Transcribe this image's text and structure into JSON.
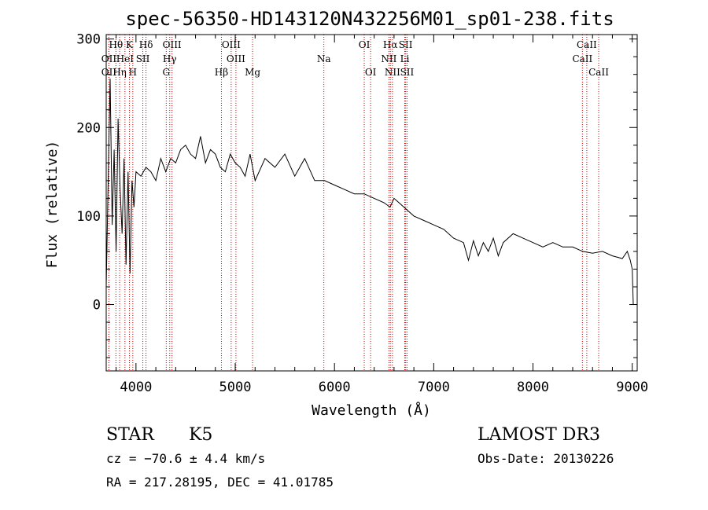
{
  "chart_data": {
    "type": "line",
    "title": "spec-56350-HD143120N432256M01_sp01-238.fits",
    "xlabel": "Wavelength (Å)",
    "ylabel": "Flux (relative)",
    "xlim": [
      3700,
      9050
    ],
    "ylim": [
      -75,
      305
    ],
    "xticks": [
      4000,
      5000,
      6000,
      7000,
      8000,
      9000
    ],
    "yticks": [
      0,
      100,
      200,
      300
    ],
    "series": [
      {
        "name": "flux",
        "x": [
          3700,
          3720,
          3740,
          3760,
          3780,
          3800,
          3820,
          3840,
          3860,
          3880,
          3900,
          3920,
          3940,
          3960,
          3980,
          4000,
          4050,
          4100,
          4150,
          4200,
          4250,
          4300,
          4350,
          4400,
          4450,
          4500,
          4550,
          4600,
          4650,
          4700,
          4750,
          4800,
          4850,
          4900,
          4950,
          5000,
          5050,
          5100,
          5150,
          5200,
          5300,
          5400,
          5500,
          5600,
          5700,
          5800,
          5900,
          6000,
          6100,
          6200,
          6300,
          6400,
          6500,
          6560,
          6600,
          6700,
          6800,
          6900,
          7000,
          7100,
          7200,
          7300,
          7350,
          7400,
          7450,
          7500,
          7550,
          7600,
          7650,
          7700,
          7800,
          7900,
          8000,
          8100,
          8200,
          8300,
          8400,
          8500,
          8600,
          8700,
          8800,
          8900,
          8950,
          8980,
          9000,
          9010
        ],
        "y": [
          20,
          140,
          255,
          90,
          175,
          60,
          210,
          130,
          80,
          165,
          45,
          150,
          35,
          140,
          110,
          150,
          145,
          155,
          150,
          140,
          165,
          150,
          165,
          160,
          175,
          180,
          170,
          165,
          190,
          160,
          175,
          170,
          155,
          150,
          170,
          160,
          155,
          145,
          170,
          140,
          165,
          155,
          170,
          145,
          165,
          140,
          140,
          135,
          130,
          125,
          125,
          120,
          115,
          110,
          120,
          110,
          100,
          95,
          90,
          85,
          75,
          70,
          50,
          72,
          55,
          70,
          60,
          75,
          55,
          70,
          80,
          75,
          70,
          65,
          70,
          65,
          65,
          60,
          58,
          60,
          55,
          52,
          60,
          50,
          40,
          0
        ]
      }
    ],
    "spectral_lines": [
      {
        "label": "Hθ",
        "wave": 3798,
        "row": 0
      },
      {
        "label": "OII",
        "wave": 3727,
        "row": 1
      },
      {
        "label": "OII",
        "wave": 3727,
        "row": 2
      },
      {
        "label": "Hη",
        "wave": 3835,
        "row": 2
      },
      {
        "label": "K",
        "wave": 3934,
        "row": 0
      },
      {
        "label": "HeI",
        "wave": 3889,
        "row": 1
      },
      {
        "label": "H",
        "wave": 3968,
        "row": 2
      },
      {
        "label": "Hδ",
        "wave": 4101,
        "row": 0
      },
      {
        "label": "SII",
        "wave": 4069,
        "row": 1
      },
      {
        "label": "OIII",
        "wave": 4363,
        "row": 0
      },
      {
        "label": "Hγ",
        "wave": 4340,
        "row": 1
      },
      {
        "label": "G",
        "wave": 4305,
        "row": 2
      },
      {
        "label": "Hβ",
        "wave": 4861,
        "row": 2
      },
      {
        "label": "OIII",
        "wave": 4959,
        "row": 0
      },
      {
        "label": "OIII",
        "wave": 5007,
        "row": 1
      },
      {
        "label": "Mg",
        "wave": 5175,
        "row": 2
      },
      {
        "label": "Na",
        "wave": 5893,
        "row": 1
      },
      {
        "label": "OI",
        "wave": 6300,
        "row": 0
      },
      {
        "label": "OI",
        "wave": 6364,
        "row": 2
      },
      {
        "label": "Hα",
        "wave": 6563,
        "row": 0
      },
      {
        "label": "NII",
        "wave": 6548,
        "row": 1
      },
      {
        "label": "NII",
        "wave": 6584,
        "row": 2
      },
      {
        "label": "SII",
        "wave": 6717,
        "row": 0
      },
      {
        "label": "Li",
        "wave": 6708,
        "row": 1
      },
      {
        "label": "SII",
        "wave": 6731,
        "row": 2
      },
      {
        "label": "CaII",
        "wave": 8542,
        "row": 0
      },
      {
        "label": "CaII",
        "wave": 8498,
        "row": 1
      },
      {
        "label": "CaII",
        "wave": 8662,
        "row": 2
      }
    ],
    "line_color": "#000000",
    "marker_color": "#cc0000"
  },
  "info": {
    "class_label": "STAR",
    "subclass_label": "K5",
    "survey": "LAMOST DR3",
    "cz": "cz = −70.6 ± 4.4 km/s",
    "obs_date": "Obs-Date: 20130226",
    "coords": "RA = 217.28195, DEC =  41.01785"
  }
}
